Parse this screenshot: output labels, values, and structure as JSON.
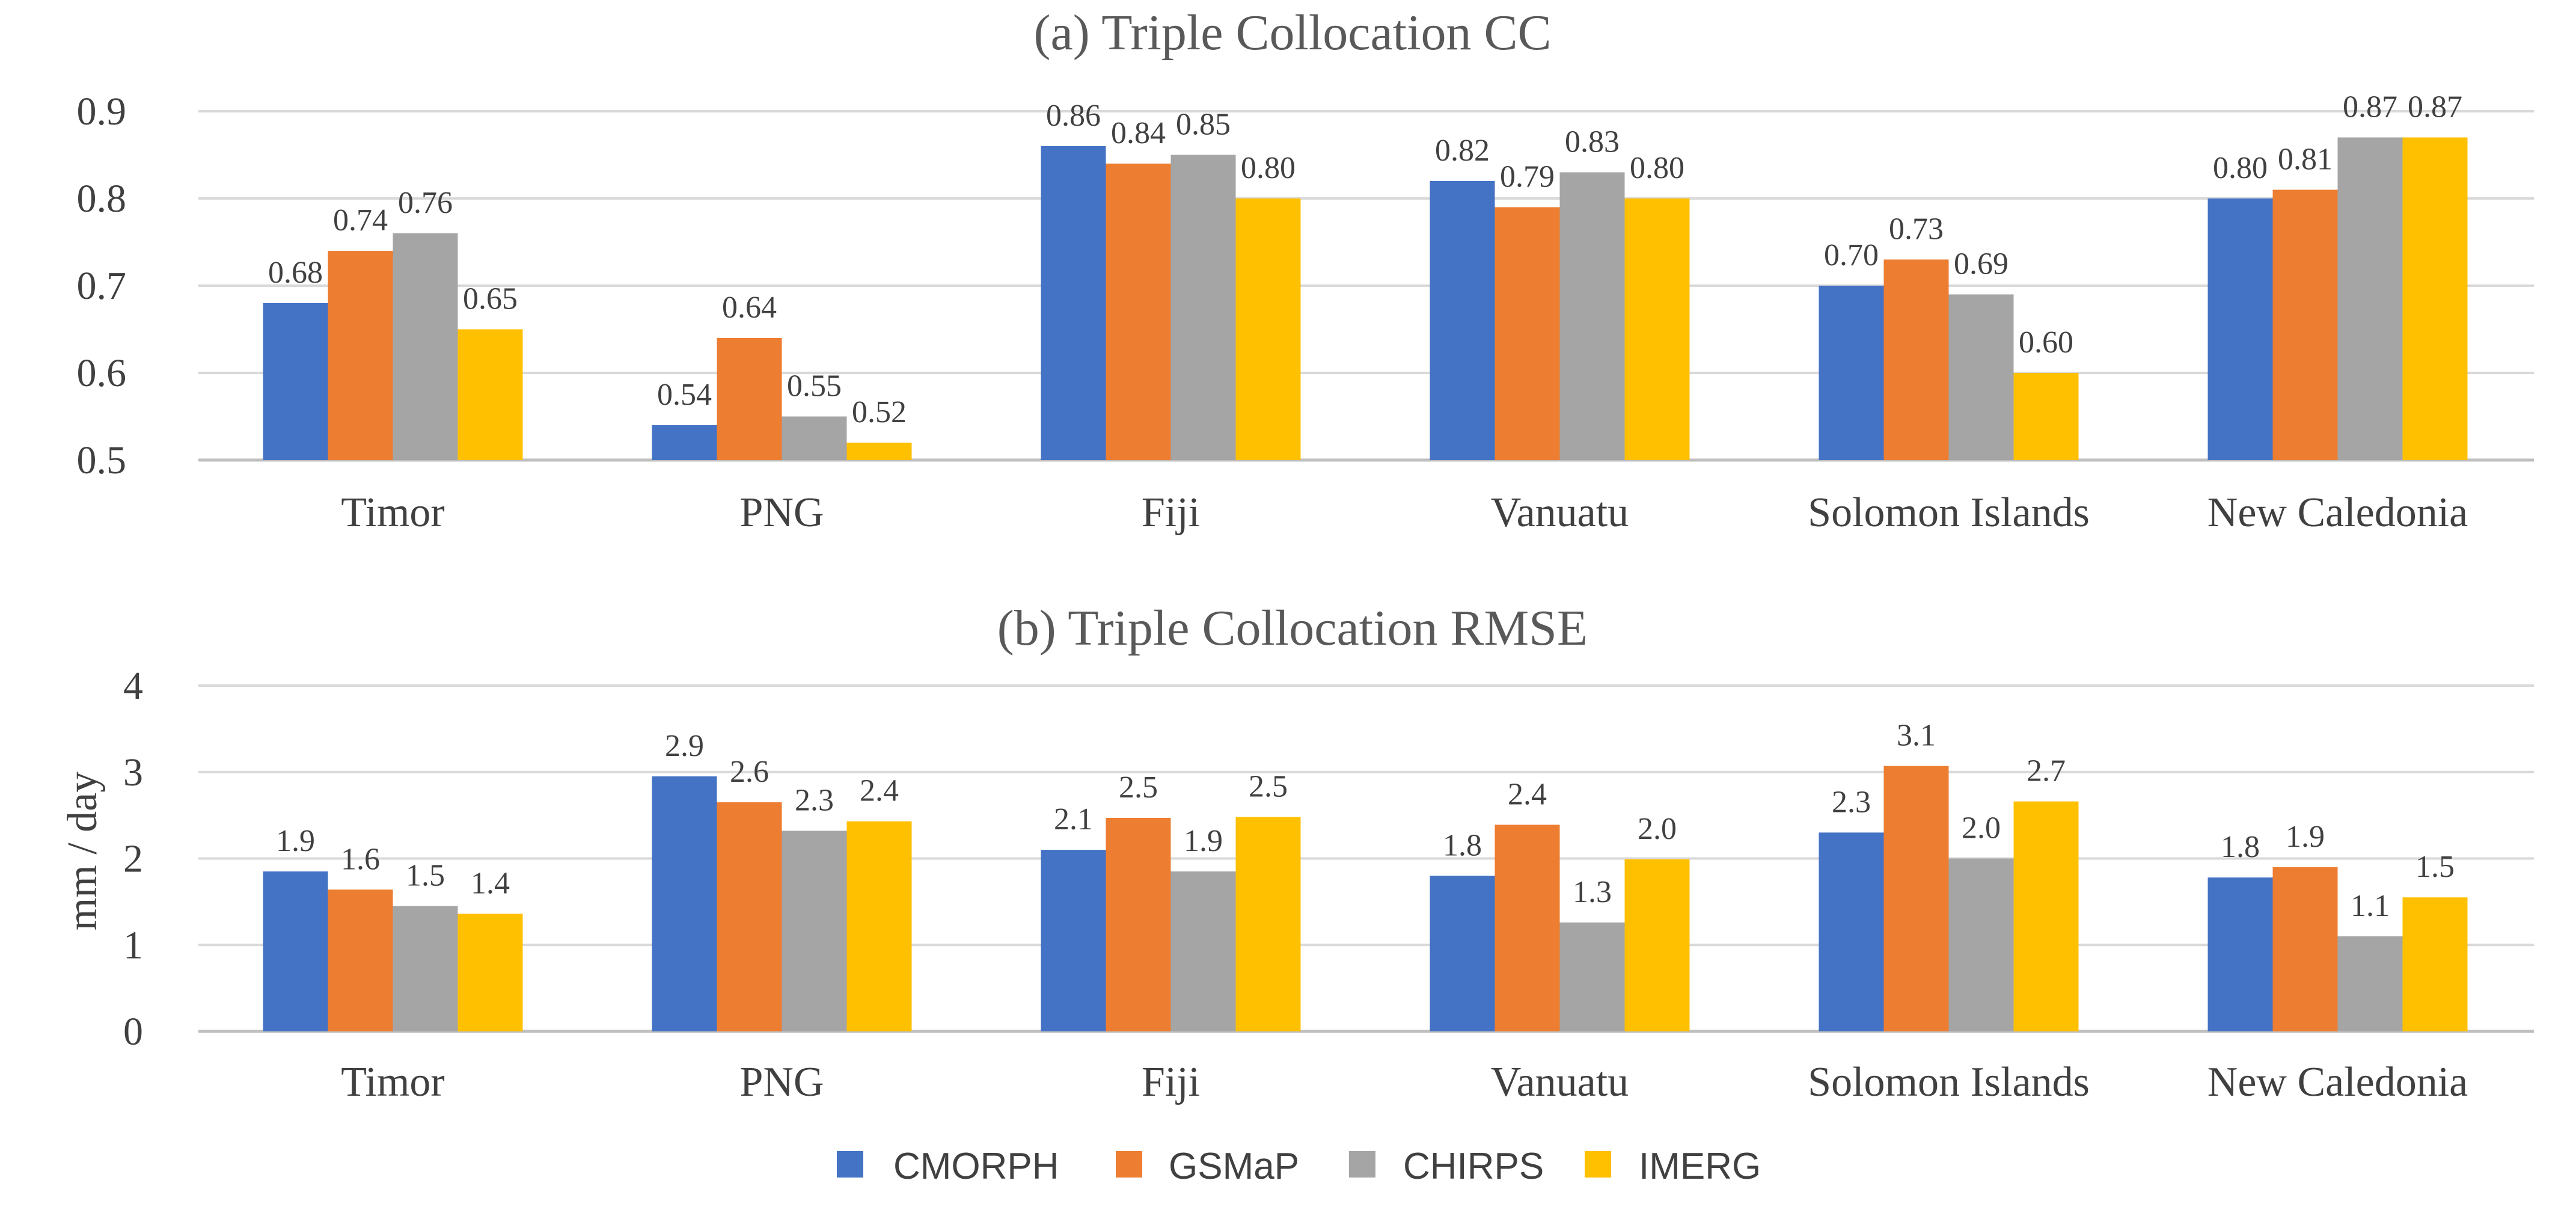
{
  "colors": {
    "CMORPH": "#4472C4",
    "GSMaP": "#ED7D31",
    "CHIRPS": "#A5A5A5",
    "IMERG": "#FFC000"
  },
  "legend": [
    "CMORPH",
    "GSMaP",
    "CHIRPS",
    "IMERG"
  ],
  "chart_data": [
    {
      "type": "bar",
      "title": "(a) Triple Collocation CC",
      "xlabel": "",
      "ylabel": "",
      "ylim": [
        0.5,
        0.9
      ],
      "yticks": [
        "0.5",
        "0.6",
        "0.7",
        "0.8",
        "0.9"
      ],
      "ytick_values": [
        0.5,
        0.6,
        0.7,
        0.8,
        0.9
      ],
      "categories": [
        "Timor",
        "PNG",
        "Fiji",
        "Vanuatu",
        "Solomon Islands",
        "New Caledonia"
      ],
      "series": [
        {
          "name": "CMORPH",
          "values": [
            0.68,
            0.54,
            0.86,
            0.82,
            0.7,
            0.8
          ],
          "labels": [
            "0.68",
            "0.54",
            "0.86",
            "0.82",
            "0.70",
            "0.80"
          ]
        },
        {
          "name": "GSMaP",
          "values": [
            0.74,
            0.64,
            0.84,
            0.79,
            0.73,
            0.81
          ],
          "labels": [
            "0.74",
            "0.64",
            "0.84",
            "0.79",
            "0.73",
            "0.81"
          ]
        },
        {
          "name": "CHIRPS",
          "values": [
            0.76,
            0.55,
            0.85,
            0.83,
            0.69,
            0.87
          ],
          "labels": [
            "0.76",
            "0.55",
            "0.85",
            "0.83",
            "0.69",
            "0.87"
          ]
        },
        {
          "name": "IMERG",
          "values": [
            0.65,
            0.52,
            0.8,
            0.8,
            0.6,
            0.87
          ],
          "labels": [
            "0.65",
            "0.52",
            "0.80",
            "0.80",
            "0.60",
            "0.87"
          ]
        }
      ]
    },
    {
      "type": "bar",
      "title": "(b) Triple Collocation RMSE",
      "xlabel": "",
      "ylabel": "mm / day",
      "ylim": [
        0,
        4
      ],
      "yticks": [
        "0",
        "1",
        "2",
        "3",
        "4"
      ],
      "ytick_values": [
        0,
        1,
        2,
        3,
        4
      ],
      "categories": [
        "Timor",
        "PNG",
        "Fiji",
        "Vanuatu",
        "Solomon Islands",
        "New Caledonia"
      ],
      "series": [
        {
          "name": "CMORPH",
          "values": [
            1.85,
            2.95,
            2.1,
            1.8,
            2.3,
            1.78
          ],
          "labels": [
            "1.9",
            "2.9",
            "2.1",
            "1.8",
            "2.3",
            "1.8"
          ]
        },
        {
          "name": "GSMaP",
          "values": [
            1.64,
            2.65,
            2.47,
            2.39,
            3.07,
            1.9
          ],
          "labels": [
            "1.6",
            "2.6",
            "2.5",
            "2.4",
            "3.1",
            "1.9"
          ]
        },
        {
          "name": "CHIRPS",
          "values": [
            1.45,
            2.32,
            1.85,
            1.26,
            2.0,
            1.1
          ],
          "labels": [
            "1.5",
            "2.3",
            "1.9",
            "1.3",
            "2.0",
            "1.1"
          ]
        },
        {
          "name": "IMERG",
          "values": [
            1.36,
            2.43,
            2.48,
            1.99,
            2.66,
            1.55
          ],
          "labels": [
            "1.4",
            "2.4",
            "2.5",
            "2.0",
            "2.7",
            "1.5"
          ]
        }
      ]
    }
  ]
}
